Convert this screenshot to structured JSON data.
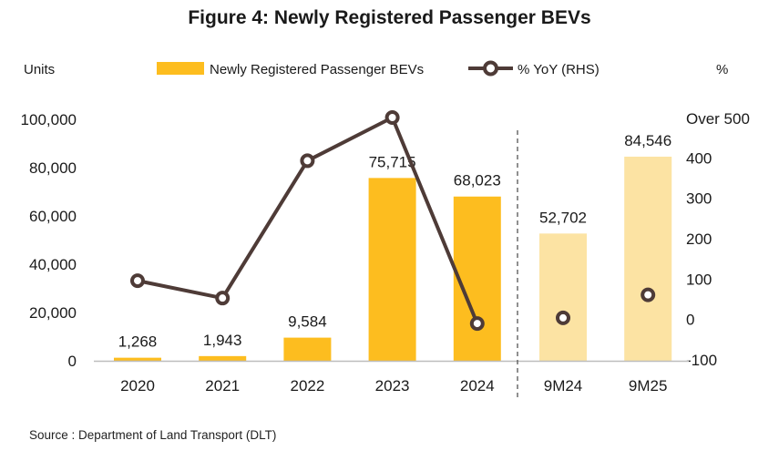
{
  "chart_data": {
    "type": "bar+line",
    "title": "Figure 4: Newly Registered Passenger BEVs",
    "categories": [
      "2020",
      "2021",
      "2022",
      "2023",
      "2024",
      "9M24",
      "9M25"
    ],
    "series": [
      {
        "name": "Newly Registered Passenger BEVs",
        "type": "bar",
        "axis": "left",
        "values": [
          1268,
          1943,
          9584,
          75715,
          68023,
          52702,
          84546
        ],
        "value_labels": [
          "1,268",
          "1,943",
          "9,584",
          "75,715",
          "68,023",
          "52,702",
          "84,546"
        ]
      },
      {
        "name": "% YoY (RHS)",
        "type": "line",
        "axis": "right",
        "values": [
          96,
          53,
          393,
          500,
          -10,
          4,
          61
        ],
        "connected_count": 5
      }
    ],
    "y_left": {
      "label": "Units",
      "range": [
        0,
        100000
      ],
      "ticks": [
        0,
        20000,
        40000,
        60000,
        80000,
        100000
      ],
      "tick_labels": [
        "0",
        "20,000",
        "40,000",
        "60,000",
        "80,000",
        "100,000"
      ]
    },
    "y_right": {
      "label": "%",
      "range": [
        -100,
        500
      ],
      "ticks": [
        -100,
        0,
        100,
        200,
        300,
        400
      ],
      "tick_labels": [
        "-100",
        "0",
        "100",
        "200",
        "300",
        "400"
      ],
      "top_label": "Over 500"
    },
    "legend_position": "top",
    "divider_after_category": "2024"
  },
  "colors": {
    "bar_solid": "#FDBD1F",
    "bar_light": "#FCE3A3",
    "line": "#4E3B37",
    "marker_fill": "#FFFFFF",
    "axis": "#BDBDBD",
    "divider": "#555555",
    "text": "#1a1a1a"
  },
  "source": "Source : Department of Land Transport (DLT)"
}
